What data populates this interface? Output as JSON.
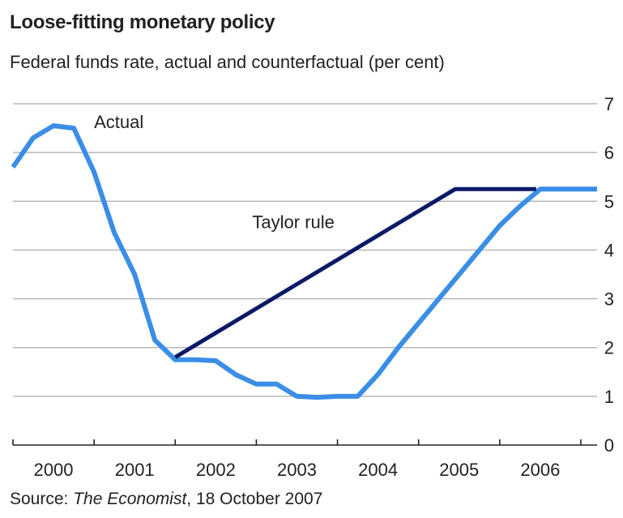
{
  "chart_data": {
    "type": "line",
    "title": "Loose-fitting monetary policy",
    "subtitle": "Federal funds rate, actual and counterfactual (per cent)",
    "source": {
      "prefix": "Source: ",
      "publication": "The Economist",
      "suffix": ", 18 October 2007"
    },
    "xlabel": "",
    "ylabel": "",
    "xlim": [
      2000.0,
      2007.2
    ],
    "ylim": [
      0,
      7
    ],
    "x_ticks": [
      2000,
      2001,
      2002,
      2003,
      2004,
      2005,
      2006,
      2007
    ],
    "x_tick_labels": [
      {
        "x": 2000.5,
        "label": "2000"
      },
      {
        "x": 2001.5,
        "label": "2001"
      },
      {
        "x": 2002.5,
        "label": "2002"
      },
      {
        "x": 2003.5,
        "label": "2003"
      },
      {
        "x": 2004.5,
        "label": "2004"
      },
      {
        "x": 2005.5,
        "label": "2005"
      },
      {
        "x": 2006.5,
        "label": "2006"
      }
    ],
    "y_ticks": [
      0,
      1,
      2,
      3,
      4,
      5,
      6,
      7
    ],
    "y_tick_labels": [
      "0",
      "1",
      "2",
      "3",
      "4",
      "5",
      "6",
      "7"
    ],
    "grid": true,
    "y_axis_side": "right",
    "series": [
      {
        "name": "Actual",
        "color": "#3a8ee6",
        "x": [
          2000.0,
          2000.25,
          2000.5,
          2000.75,
          2001.0,
          2001.25,
          2001.5,
          2001.75,
          2002.0,
          2002.25,
          2002.5,
          2002.75,
          2003.0,
          2003.25,
          2003.5,
          2003.75,
          2004.0,
          2004.25,
          2004.5,
          2004.75,
          2005.0,
          2005.25,
          2005.5,
          2005.75,
          2006.0,
          2006.25,
          2006.5,
          2006.75,
          2007.0,
          2007.2
        ],
        "y": [
          5.7,
          6.3,
          6.55,
          6.5,
          5.6,
          4.35,
          3.5,
          2.15,
          1.75,
          1.75,
          1.73,
          1.44,
          1.25,
          1.25,
          1.0,
          0.98,
          1.0,
          1.0,
          1.45,
          2.0,
          2.5,
          3.0,
          3.5,
          4.0,
          4.5,
          4.9,
          5.25,
          5.25,
          5.25,
          5.25
        ]
      },
      {
        "name": "Taylor rule",
        "color": "#0b1a66",
        "x": [
          2002.0,
          2005.45,
          2006.45
        ],
        "y": [
          1.8,
          5.25,
          5.25
        ]
      }
    ],
    "annotations": [
      {
        "text": "Actual",
        "x": 2001.0,
        "y": 6.5
      },
      {
        "text": "Taylor rule",
        "x": 2002.95,
        "y": 4.45
      }
    ]
  }
}
